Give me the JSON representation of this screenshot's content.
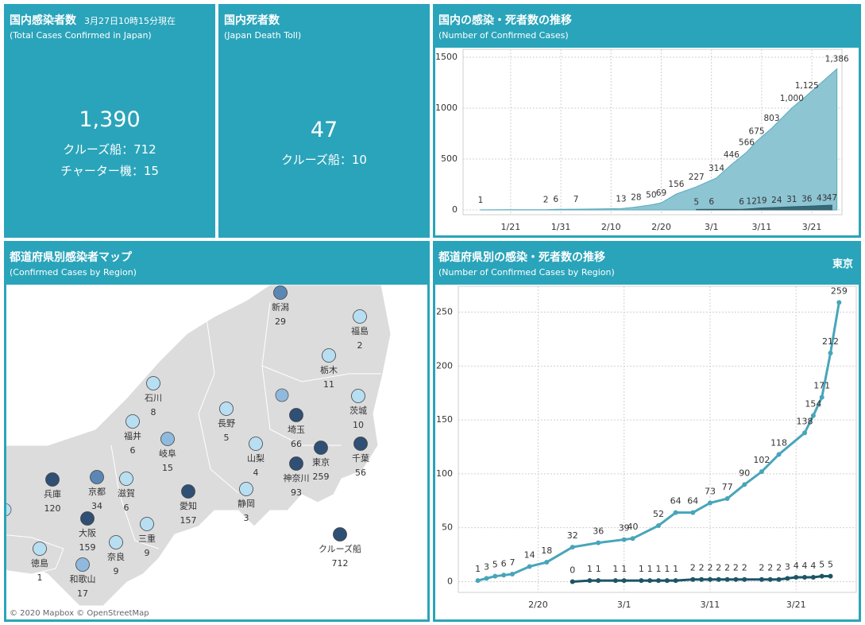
{
  "panels": {
    "total": {
      "title": "国内感染者数",
      "timestamp": "3月27日10時15分現在",
      "subtitle": "(Total Cases Confirmed in Japan)",
      "value": "1,390",
      "lines": [
        "クルーズ船：712",
        "チャーター機：15"
      ]
    },
    "deaths": {
      "title": "国内死者数",
      "subtitle": "(Japan Death Toll)",
      "value": "47",
      "lines": [
        "クルーズ船：10"
      ]
    },
    "map": {
      "title": "都道府県別感染者マップ",
      "subtitle": "(Confirmed Cases by Region)",
      "attribution": "© 2020 Mapbox © OpenStreetMap",
      "regions": [
        {
          "name": "新潟",
          "value": 29
        },
        {
          "name": "福島",
          "value": 2
        },
        {
          "name": "栃木",
          "value": 11
        },
        {
          "name": "茨城",
          "value": 10
        },
        {
          "name": "石川",
          "value": 8
        },
        {
          "name": "福井",
          "value": 6
        },
        {
          "name": "長野",
          "value": 5
        },
        {
          "name": "岐阜",
          "value": 15
        },
        {
          "name": "埼玉",
          "value": 66
        },
        {
          "name": "山梨",
          "value": 4
        },
        {
          "name": "東京",
          "value": 259
        },
        {
          "name": "千葉",
          "value": 56
        },
        {
          "name": "神奈川",
          "value": 93
        },
        {
          "name": "静岡",
          "value": 3
        },
        {
          "name": "愛知",
          "value": 157
        },
        {
          "name": "兵庫",
          "value": 120
        },
        {
          "name": "京都",
          "value": 34
        },
        {
          "name": "滋賀",
          "value": 6
        },
        {
          "name": "大阪",
          "value": 159
        },
        {
          "name": "三重",
          "value": 9
        },
        {
          "name": "奈良",
          "value": 9
        },
        {
          "name": "和歌山",
          "value": 17
        },
        {
          "name": "徳島",
          "value": 1
        },
        {
          "name": "クルーズ船",
          "value": 712
        }
      ]
    }
  },
  "chart_data": [
    {
      "type": "area",
      "title": "国内の感染・死者数の推移",
      "subtitle": "(Number of Confirmed Cases)",
      "xlim": [
        "1/12",
        "3/27"
      ],
      "xticks": [
        "1/21",
        "1/31",
        "2/10",
        "2/20",
        "3/1",
        "3/11",
        "3/21"
      ],
      "ylim": [
        -47,
        1578
      ],
      "yticks": [
        0,
        500,
        1000,
        1500
      ],
      "grid": true,
      "series": [
        {
          "color": "#8ec5d3",
          "x": [
            "1/15",
            "1/28",
            "1/30",
            "2/3",
            "2/12",
            "2/15",
            "2/18",
            "2/20",
            "2/23",
            "2/27",
            "3/2",
            "3/5",
            "3/8",
            "3/10",
            "3/13",
            "3/17",
            "3/20",
            "3/26"
          ],
          "values": [
            1,
            2,
            6,
            7,
            13,
            28,
            50,
            69,
            156,
            227,
            314,
            446,
            566,
            675,
            803,
            1000,
            1125,
            1386
          ],
          "value_labels": [
            "1",
            "2",
            "6",
            "7",
            "13",
            "28",
            "50",
            "69",
            "156",
            "227",
            "314",
            "446",
            "566",
            "675",
            "803",
            "1,000",
            "1,125",
            "1,386"
          ]
        },
        {
          "color": "#2c5f6e",
          "x": [
            "2/27",
            "3/1",
            "3/7",
            "3/9",
            "3/11",
            "3/14",
            "3/17",
            "3/20",
            "3/23",
            "3/25"
          ],
          "values": [
            5,
            6,
            6,
            12,
            19,
            24,
            31,
            36,
            43,
            47
          ]
        }
      ]
    },
    {
      "type": "line",
      "title": "都道府県別の感染・死者数の推移",
      "subtitle": "(Number of Confirmed Cases by Region)",
      "filter": "東京",
      "xlim": [
        "2/11",
        "3/28"
      ],
      "xticks": [
        "2/20",
        "3/1",
        "3/11",
        "3/21"
      ],
      "ylim": [
        -10,
        274
      ],
      "yticks": [
        0,
        50,
        100,
        150,
        200,
        250
      ],
      "grid": true,
      "series": [
        {
          "color": "#48a5ba",
          "x": [
            "2/13",
            "2/14",
            "2/15",
            "2/16",
            "2/17",
            "2/19",
            "2/21",
            "2/24",
            "2/27",
            "3/1",
            "3/2",
            "3/5",
            "3/7",
            "3/9",
            "3/11",
            "3/13",
            "3/15",
            "3/17",
            "3/19",
            "3/22",
            "3/23",
            "3/24",
            "3/25",
            "3/26"
          ],
          "values": [
            1,
            3,
            5,
            6,
            7,
            14,
            18,
            32,
            36,
            39,
            40,
            52,
            64,
            64,
            73,
            77,
            90,
            102,
            118,
            138,
            154,
            171,
            212,
            259
          ]
        },
        {
          "color": "#1d5566",
          "x": [
            "2/24",
            "2/26",
            "2/27",
            "2/29",
            "3/1",
            "3/3",
            "3/4",
            "3/5",
            "3/6",
            "3/7",
            "3/9",
            "3/10",
            "3/11",
            "3/12",
            "3/13",
            "3/14",
            "3/15",
            "3/17",
            "3/18",
            "3/19",
            "3/20",
            "3/21",
            "3/22",
            "3/23",
            "3/24",
            "3/25"
          ],
          "values": [
            0,
            1,
            1,
            1,
            1,
            1,
            1,
            1,
            1,
            1,
            2,
            2,
            2,
            2,
            2,
            2,
            2,
            2,
            2,
            2,
            3,
            4,
            4,
            4,
            5,
            5
          ]
        }
      ]
    }
  ]
}
